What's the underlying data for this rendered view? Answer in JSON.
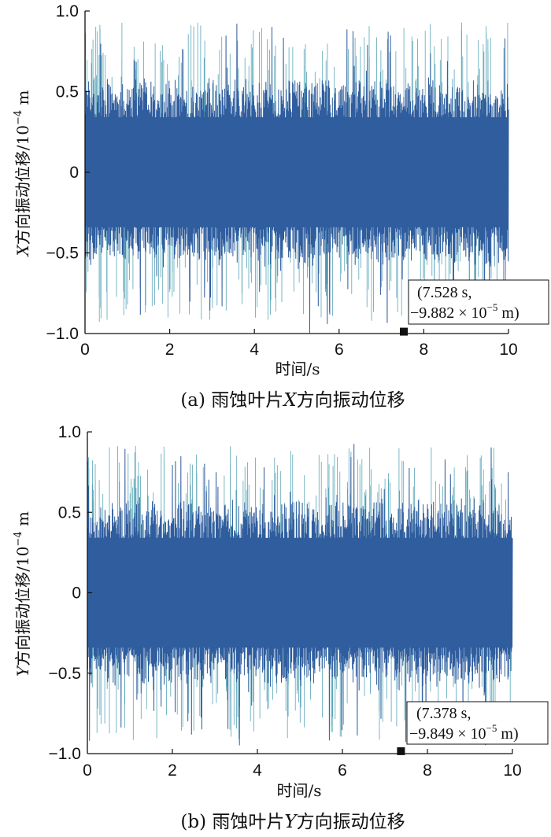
{
  "colors": {
    "signal": "#2f5d9e",
    "signal_light": "#5aa6b8",
    "axis": "#111111"
  },
  "chart_data": [
    {
      "type": "line",
      "panel_label": "(a)",
      "caption": {
        "prefix": "雨蚀叶片",
        "axis_letter": "X",
        "suffix": "方向振动位移"
      },
      "xlabel": "时间/s",
      "ylabel": {
        "letter": "X",
        "text": "方向振动位移/10",
        "exp": "−4",
        "unit": " m"
      },
      "xlim": [
        0,
        10
      ],
      "ylim": [
        -1.0,
        1.0
      ],
      "x_ticks": [
        "0",
        "2",
        "4",
        "6",
        "8",
        "10"
      ],
      "y_ticks": [
        "−1.0",
        "−0.5",
        "0",
        "0.5",
        "1.0"
      ],
      "envelope": {
        "typical_peak": 0.55,
        "max_peak": 0.97,
        "min_peak": -0.9882
      },
      "marker": {
        "x": 7.528,
        "y": -0.9882
      },
      "annotation": {
        "line1": "(7.528 s,",
        "line2_pre": "−9.882 × 10",
        "line2_exp": "−5",
        "line2_post": " m)"
      }
    },
    {
      "type": "line",
      "panel_label": "(b)",
      "caption": {
        "prefix": "雨蚀叶片",
        "axis_letter": "Y",
        "suffix": "方向振动位移"
      },
      "xlabel": "时间/s",
      "ylabel": {
        "letter": "Y",
        "text": "方向振动位移/10",
        "exp": "−4",
        "unit": " m"
      },
      "xlim": [
        0,
        10
      ],
      "ylim": [
        -1.0,
        1.0
      ],
      "x_ticks": [
        "0",
        "2",
        "4",
        "6",
        "8",
        "10"
      ],
      "y_ticks": [
        "−1.0",
        "−0.5",
        "0",
        "0.5",
        "1.0"
      ],
      "envelope": {
        "typical_peak": 0.55,
        "max_peak": 0.96,
        "min_peak": -0.9849
      },
      "marker": {
        "x": 7.378,
        "y": -0.9849
      },
      "annotation": {
        "line1": "(7.378 s,",
        "line2_pre": "−9.849 × 10",
        "line2_exp": "−5",
        "line2_post": " m)"
      }
    }
  ]
}
